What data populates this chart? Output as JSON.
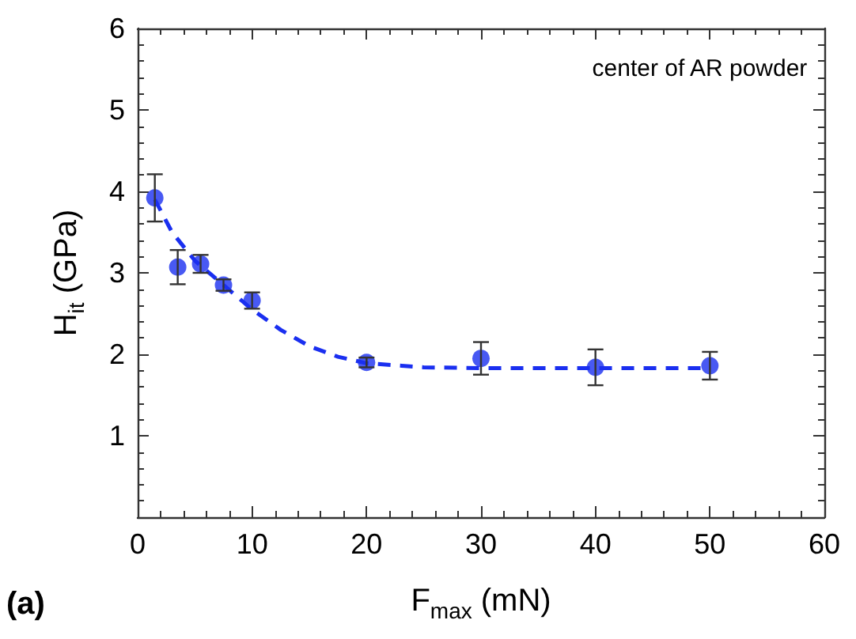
{
  "chart_data": {
    "type": "scatter",
    "xlabel": "F$_{max}$ (mN)",
    "ylabel": "H$_{it}$ (GPa)",
    "annotations": [
      "center of AR powder",
      "(a)"
    ],
    "xlim": [
      0,
      60
    ],
    "xticks": [
      0,
      10,
      20,
      30,
      40,
      50,
      60
    ],
    "ylim": [
      0,
      6
    ],
    "yticks": [
      1,
      2,
      3,
      4,
      5,
      6
    ],
    "grid": false,
    "marker": "circle",
    "series": [
      {
        "color": "#1a2ff0",
        "x": [
          1.5,
          3.5,
          5.5,
          7.5,
          10,
          20,
          30,
          40,
          50
        ],
        "values": [
          3.92,
          3.07,
          3.11,
          2.85,
          2.66,
          1.9,
          1.95,
          1.84,
          1.86
        ],
        "errors": [
          0.29,
          0.21,
          0.11,
          0.07,
          0.1,
          0.06,
          0.2,
          0.22,
          0.17
        ]
      },
      {
        "type": "line",
        "color": "#1a2ff0",
        "line_style": "dashed",
        "marker": "none",
        "x": [
          1.5,
          3,
          5,
          7.5,
          10,
          12.5,
          15,
          17.5,
          20,
          25,
          30,
          40,
          50
        ],
        "values": [
          3.9,
          3.5,
          3.15,
          2.85,
          2.55,
          2.3,
          2.1,
          1.97,
          1.89,
          1.84,
          1.83,
          1.83,
          1.83
        ]
      }
    ]
  }
}
